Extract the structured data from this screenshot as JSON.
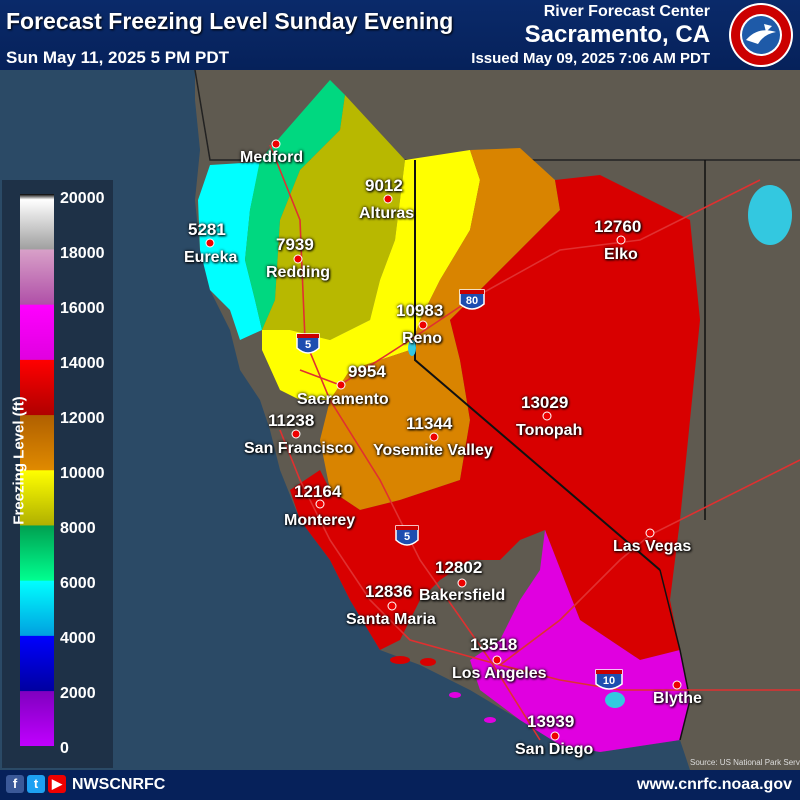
{
  "header": {
    "title": "Forecast Freezing Level Sunday Evening",
    "valid_time": "Sun May 11, 2025 5 PM PDT",
    "rfc_label": "River Forecast Center",
    "rfc_city": "Sacramento, CA",
    "issued": "Issued May 09, 2025 7:06 AM PDT",
    "logo_icon": "noaa-nws-logo-icon"
  },
  "legend": {
    "title": "Freezing Level (ft)",
    "ticks": [
      "20000",
      "18000",
      "16000",
      "14000",
      "12000",
      "10000",
      "8000",
      "6000",
      "4000",
      "2000",
      "0"
    ],
    "colors": [
      "#000000",
      "#ffffff",
      "#c8c8c8",
      "#a0a0a0",
      "#d8a0c8",
      "#b050a8",
      "#ff00ff",
      "#e000e0",
      "#ff0000",
      "#c00000",
      "#b06000",
      "#e08a00",
      "#ffff00",
      "#b0b000",
      "#00c870",
      "#00b060",
      "#00ffff",
      "#00a0e0",
      "#0000ff",
      "#0000a0",
      "#8000c0",
      "#c000ff"
    ]
  },
  "cities": {
    "medford": "Medford",
    "eureka": "Eureka",
    "eureka_val": "5281",
    "redding": "Redding",
    "redding_val": "7939",
    "alturas": "Alturas",
    "alturas_val": "9012",
    "reno": "Reno",
    "reno_val": "10983",
    "elko": "Elko",
    "elko_val": "12760",
    "sacramento": "Sacramento",
    "sacramento_val": "9954",
    "sanfrancisco": "San Francisco",
    "sanfrancisco_val": "11238",
    "yosemite": "Yosemite Valley",
    "yosemite_val": "11344",
    "tonopah": "Tonopah",
    "tonopah_val": "13029",
    "monterey": "Monterey",
    "monterey_val": "12164",
    "lasvegas": "Las Vegas",
    "bakersfield": "Bakersfield",
    "bakersfield_val": "12802",
    "santamaria": "Santa Maria",
    "santamaria_val": "12836",
    "losangeles": "Los Angeles",
    "losangeles_val": "13518",
    "blythe": "Blythe",
    "sandiego": "San Diego",
    "sandiego_val": "13939"
  },
  "highways": {
    "i5": "5",
    "i80": "80",
    "i10": "10"
  },
  "zones": {
    "z1": "#00ffff",
    "z2": "#00d880",
    "z3": "#b8b800",
    "z4": "#ffff00",
    "z5": "#d98400",
    "z6": "#d80000",
    "z7": "#e000e0"
  },
  "source": "Source: US National Park Service",
  "footer": {
    "handle": "NWSCNRFC",
    "website": "www.cnrfc.noaa.gov",
    "facebook_icon": "facebook-icon",
    "twitter_icon": "twitter-icon",
    "youtube_icon": "youtube-icon"
  }
}
